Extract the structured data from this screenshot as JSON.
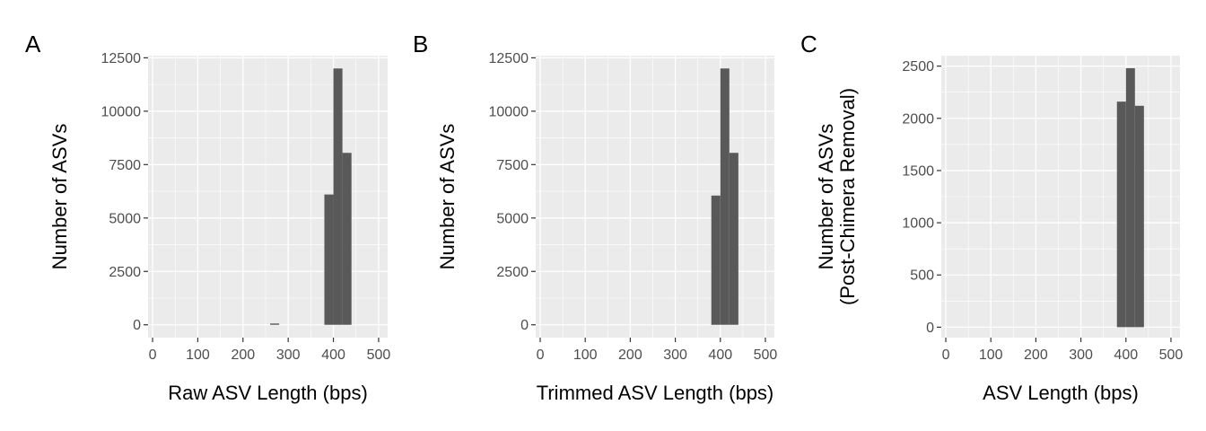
{
  "colors": {
    "panel_bg": "#ebebeb",
    "grid_major": "#ffffff",
    "bar_fill": "#595959",
    "tick": "#333333"
  },
  "chart_data": [
    {
      "type": "bar",
      "panel_label": "A",
      "xlabel": "Raw ASV Length (bps)",
      "ylabel": [
        "Number of ASVs"
      ],
      "xlim": [
        -10,
        520
      ],
      "ylim": [
        -600,
        12600
      ],
      "x_ticks": [
        0,
        100,
        200,
        300,
        400,
        500
      ],
      "y_ticks": [
        0,
        2500,
        5000,
        7500,
        10000,
        12500
      ],
      "grid": true,
      "bin_width": 20,
      "bins": [
        {
          "x0": 260,
          "x1": 280,
          "count": 60
        },
        {
          "x0": 380,
          "x1": 400,
          "count": 6100
        },
        {
          "x0": 400,
          "x1": 420,
          "count": 12000
        },
        {
          "x0": 420,
          "x1": 440,
          "count": 8050
        }
      ]
    },
    {
      "type": "bar",
      "panel_label": "B",
      "xlabel": "Trimmed ASV Length (bps)",
      "ylabel": [
        "Number of ASVs"
      ],
      "xlim": [
        -10,
        520
      ],
      "ylim": [
        -600,
        12600
      ],
      "x_ticks": [
        0,
        100,
        200,
        300,
        400,
        500
      ],
      "y_ticks": [
        0,
        2500,
        5000,
        7500,
        10000,
        12500
      ],
      "grid": true,
      "bin_width": 20,
      "bins": [
        {
          "x0": 380,
          "x1": 400,
          "count": 6050
        },
        {
          "x0": 400,
          "x1": 420,
          "count": 12000
        },
        {
          "x0": 420,
          "x1": 440,
          "count": 8050
        }
      ]
    },
    {
      "type": "bar",
      "panel_label": "C",
      "xlabel": "ASV Length (bps)",
      "ylabel": [
        "Number of ASVs",
        "(Post-Chimera Removal)"
      ],
      "xlim": [
        -10,
        520
      ],
      "ylim": [
        -100,
        2600
      ],
      "x_ticks": [
        0,
        100,
        200,
        300,
        400,
        500
      ],
      "y_ticks": [
        0,
        500,
        1000,
        1500,
        2000,
        2500
      ],
      "grid": true,
      "bin_width": 20,
      "bins": [
        {
          "x0": 380,
          "x1": 400,
          "count": 2160
        },
        {
          "x0": 400,
          "x1": 420,
          "count": 2480
        },
        {
          "x0": 420,
          "x1": 440,
          "count": 2120
        }
      ]
    }
  ]
}
